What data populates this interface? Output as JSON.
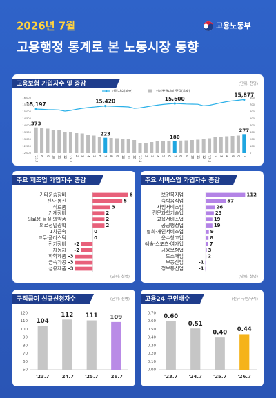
{
  "header": {
    "date": "2026년 7월",
    "ministry": "고용노동부",
    "title": "고용행정 통계로 본 노동시장 동향"
  },
  "chart_data": [
    {
      "type": "combo",
      "title": "고용보험 가입자수 및 증감",
      "unit": "(단위: 천명)",
      "categories": [
        "'23.7",
        "8",
        "9",
        "10",
        "11",
        "12",
        "'24.1",
        "2",
        "3",
        "4",
        "5",
        "6",
        "7",
        "8",
        "9",
        "10",
        "11",
        "12",
        "'25.1",
        "2",
        "3",
        "4",
        "5",
        "6",
        "7",
        "8",
        "9",
        "10",
        "11",
        "12",
        "'26.1",
        "2",
        "3",
        "4",
        "5",
        "6",
        "7"
      ],
      "series": [
        {
          "name": "가입자수(좌축)",
          "type": "line",
          "axis": "y",
          "color": "#2ab0e8",
          "values": [
            15197,
            15180,
            15160,
            15150,
            15130,
            15050,
            15100,
            15180,
            15250,
            15300,
            15340,
            15380,
            15420,
            15400,
            15380,
            15370,
            15350,
            15250,
            15280,
            15350,
            15420,
            15480,
            15530,
            15570,
            15600,
            15580,
            15560,
            15550,
            15540,
            15430,
            15470,
            15560,
            15650,
            15730,
            15790,
            15830,
            15877
          ],
          "value_labels": [
            "15,197",
            null,
            null,
            null,
            null,
            null,
            null,
            null,
            null,
            null,
            null,
            null,
            "15,420",
            null,
            null,
            null,
            null,
            null,
            null,
            null,
            null,
            null,
            null,
            null,
            "15,600",
            null,
            null,
            null,
            null,
            null,
            null,
            null,
            null,
            null,
            null,
            null,
            "15,877"
          ]
        },
        {
          "name": "전년동월대비 증감(우축)",
          "type": "bar",
          "axis": "y2",
          "color": "#bdbdbd",
          "colors": [
            "#bdbdbd",
            "#bdbdbd",
            "#bdbdbd",
            "#bdbdbd",
            "#bdbdbd",
            "#bdbdbd",
            "#bdbdbd",
            "#bdbdbd",
            "#bdbdbd",
            "#bdbdbd",
            "#bdbdbd",
            "#bdbdbd",
            "#1fa6e0",
            "#bdbdbd",
            "#bdbdbd",
            "#bdbdbd",
            "#bdbdbd",
            "#bdbdbd",
            "#bdbdbd",
            "#bdbdbd",
            "#bdbdbd",
            "#bdbdbd",
            "#bdbdbd",
            "#bdbdbd",
            "#1fa6e0",
            "#bdbdbd",
            "#bdbdbd",
            "#bdbdbd",
            "#bdbdbd",
            "#bdbdbd",
            "#bdbdbd",
            "#bdbdbd",
            "#bdbdbd",
            "#bdbdbd",
            "#bdbdbd",
            "#bdbdbd",
            "#1fa6e0"
          ],
          "values": [
            373,
            365,
            355,
            340,
            330,
            310,
            300,
            290,
            285,
            270,
            255,
            240,
            223,
            220,
            215,
            210,
            205,
            190,
            150,
            150,
            160,
            170,
            175,
            178,
            180,
            182,
            185,
            190,
            195,
            200,
            215,
            230,
            240,
            245,
            250,
            255,
            277
          ],
          "value_labels": [
            "373",
            null,
            null,
            null,
            null,
            null,
            null,
            null,
            null,
            null,
            null,
            null,
            "223",
            null,
            null,
            null,
            null,
            null,
            null,
            null,
            null,
            null,
            null,
            null,
            "180",
            null,
            null,
            null,
            null,
            null,
            null,
            null,
            null,
            null,
            null,
            null,
            "277"
          ]
        }
      ],
      "ylim": [
        12000,
        16000
      ],
      "yticks": [
        {
          "value": 12000,
          "label": "12,000"
        },
        {
          "value": 12500,
          "label": "12,500"
        },
        {
          "value": 13000,
          "label": "13,000"
        },
        {
          "value": 13500,
          "label": "13,500"
        },
        {
          "value": 14000,
          "label": "14,000"
        },
        {
          "value": 14500,
          "label": "14,500"
        },
        {
          "value": 15000,
          "label": "15,000"
        },
        {
          "value": 15500,
          "label": "15,500"
        },
        {
          "value": 16000,
          "label": "16,000"
        }
      ],
      "y2lim": [
        0,
        800
      ],
      "y2ticks": [
        0,
        100,
        200,
        300,
        400,
        500,
        600,
        700,
        800
      ],
      "grid": false
    },
    {
      "type": "hbar",
      "title": "주요 제조업 가입자수 증감",
      "unit": "(단위: 천명)",
      "color": "#e8607a",
      "categories": [
        "기타운송장비",
        "전자·통신",
        "식료품",
        "기계장비",
        "의료용 물질·의약품",
        "의료정밀광학",
        "1차금속",
        "고무·플라스틱",
        "전기장비",
        "자동차",
        "화학제품",
        "금속가공",
        "섬유제품"
      ],
      "values": [
        6,
        5,
        3,
        2,
        2,
        2,
        0,
        0,
        -2,
        -2,
        -3,
        -3,
        -3
      ],
      "xlim": [
        -4,
        6.5
      ]
    },
    {
      "type": "hbar",
      "title": "주요 서비스업 가입자수 증감",
      "unit": "(단위: 천명)",
      "color": "#b383e6",
      "categories": [
        "보건복지업",
        "숙박음식업",
        "사업서비스업",
        "전문과학기술업",
        "교육서비스업",
        "공공행정업",
        "협회·개인서비스업",
        "운수창고업",
        "예술·스포츠·여가업",
        "금융보험업",
        "도소매업",
        "부동산업",
        "정보통신업"
      ],
      "values": [
        112,
        57,
        26,
        23,
        19,
        19,
        9,
        8,
        7,
        3,
        2,
        -1,
        -1
      ],
      "xlim": [
        -55,
        125
      ]
    },
    {
      "type": "bar",
      "title": "구직급여 신규신청자수",
      "unit": "(단위: 천명)",
      "categories": [
        "'23.7",
        "'24.7",
        "'25.7",
        "'26.7"
      ],
      "values": [
        104,
        112,
        111,
        109
      ],
      "colors": [
        "#c6c6c6",
        "#c6c6c6",
        "#c6c6c6",
        "#b98be6"
      ],
      "ylim": [
        50,
        120
      ],
      "yticks": [
        50,
        60,
        70,
        80,
        90,
        100,
        110,
        120
      ],
      "grid": false
    },
    {
      "type": "bar",
      "title": "고용24 구인배수",
      "unit": "(신규 구인/구직)",
      "categories": [
        "'23.7",
        "'24.7",
        "'25.7",
        "'26.7"
      ],
      "values": [
        0.6,
        0.51,
        0.4,
        0.44
      ],
      "value_labels": [
        "0.60",
        "0.51",
        "0.40",
        "0.44"
      ],
      "colors": [
        "#c6c6c6",
        "#c6c6c6",
        "#c6c6c6",
        "#f5b31a"
      ],
      "ylim": [
        0,
        0.7
      ],
      "yticks": [
        {
          "value": 0,
          "label": "0.00"
        },
        {
          "value": 0.1,
          "label": "0.10"
        },
        {
          "value": 0.2,
          "label": "0.20"
        },
        {
          "value": 0.3,
          "label": "0.30"
        },
        {
          "value": 0.4,
          "label": "0.40"
        },
        {
          "value": 0.5,
          "label": "0.50"
        },
        {
          "value": 0.6,
          "label": "0.60"
        },
        {
          "value": 0.7,
          "label": "0.70"
        }
      ],
      "grid": false
    }
  ]
}
